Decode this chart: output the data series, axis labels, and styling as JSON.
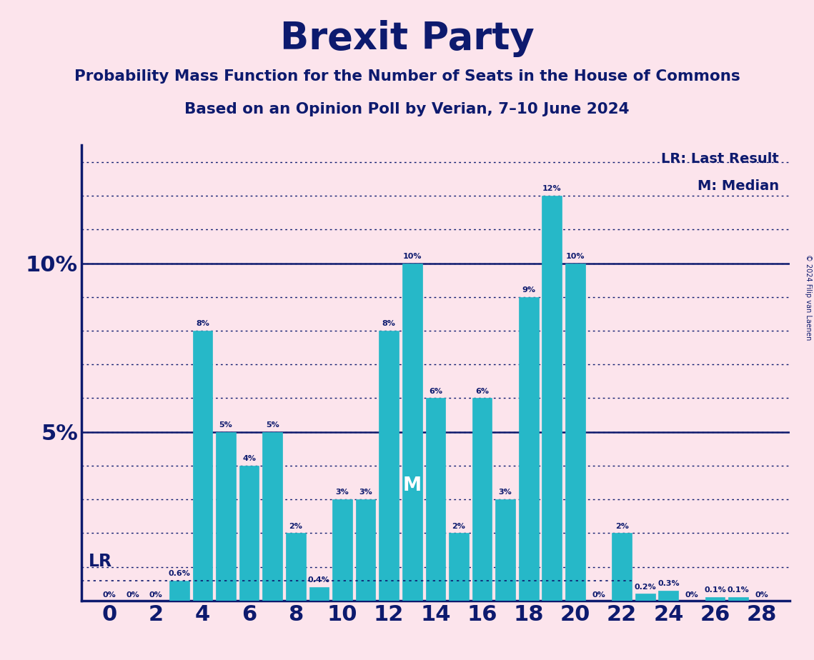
{
  "title": "Brexit Party",
  "subtitle1": "Probability Mass Function for the Number of Seats in the House of Commons",
  "subtitle2": "Based on an Opinion Poll by Verian, 7–10 June 2024",
  "copyright": "© 2024 Filip van Laenen",
  "background_color": "#fce4ec",
  "bar_color": "#26b8c8",
  "text_color": "#0d1a6e",
  "seats": [
    0,
    1,
    2,
    3,
    4,
    5,
    6,
    7,
    8,
    9,
    10,
    11,
    12,
    13,
    14,
    15,
    16,
    17,
    18,
    19,
    20,
    21,
    22,
    23,
    24,
    25,
    26,
    27,
    28
  ],
  "probs": [
    0.0,
    0.0,
    0.0,
    0.006,
    0.08,
    0.05,
    0.04,
    0.05,
    0.02,
    0.004,
    0.03,
    0.03,
    0.08,
    0.1,
    0.06,
    0.02,
    0.06,
    0.03,
    0.09,
    0.12,
    0.1,
    0.0,
    0.02,
    0.002,
    0.003,
    0.0,
    0.001,
    0.001,
    0.0
  ],
  "labels": [
    "0%",
    "0%",
    "0%",
    "0.6%",
    "8%",
    "5%",
    "4%",
    "5%",
    "2%",
    "0.4%",
    "3%",
    "3%",
    "8%",
    "10%",
    "6%",
    "2%",
    "6%",
    "3%",
    "9%",
    "12%",
    "10%",
    "0%",
    "2%",
    "0.2%",
    "0.3%",
    "0%",
    "0.1%",
    "0.1%",
    "0%"
  ],
  "lr_seat": 0,
  "median_seat": 13,
  "lr_line_y": 0.006,
  "ylim": [
    0,
    0.135
  ],
  "xticks": [
    0,
    2,
    4,
    6,
    8,
    10,
    12,
    14,
    16,
    18,
    20,
    22,
    24,
    26,
    28
  ],
  "legend_lr": "LR: Last Result",
  "legend_m": "M: Median",
  "dotted_line_color": "#0d1a6e",
  "axis_line_color": "#0d1a6e"
}
